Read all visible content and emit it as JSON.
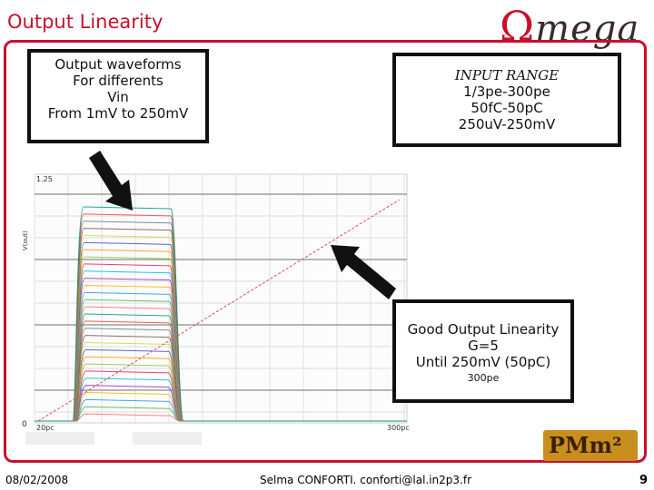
{
  "title": "Output Linearity",
  "logo": {
    "first": "Ω",
    "rest": "mega"
  },
  "box_waveforms": {
    "lines": [
      "Output waveforms",
      "For differents",
      "Vin",
      "From 1mV to 250mV"
    ]
  },
  "box_input": {
    "heading": "INPUT RANGE",
    "lines": [
      "1/3pe-300pe",
      "50fC-50pC",
      "250uV-250mV"
    ]
  },
  "box_linearity": {
    "lines": [
      "Good Output Linearity",
      "G=5",
      "Until 250mV (50pC)"
    ],
    "small": "300pe"
  },
  "plot": {
    "ymax_label": "1.25",
    "ylabel": "V(out)",
    "y0_label": "0",
    "x_left_label": "20pc",
    "x_right_label": "300pc"
  },
  "pmm_logo": "PMm²",
  "footer": {
    "date": "08/02/2008",
    "author": "Selma CONFORTI. conforti@lal.in2p3.fr",
    "page": "9"
  },
  "colors": {
    "accent": "#c8102e",
    "box_border": "#111111"
  }
}
